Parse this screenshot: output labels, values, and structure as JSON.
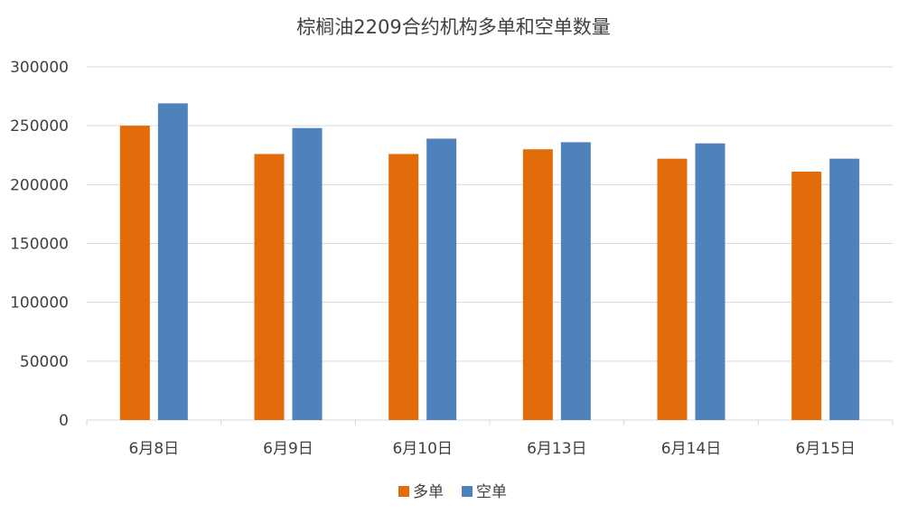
{
  "chart_data": {
    "type": "bar",
    "title": "棕榈油2209合约机构多单和空单数量",
    "xlabel": "",
    "ylabel": "",
    "categories": [
      "6月8日",
      "6月9日",
      "6月10日",
      "6月13日",
      "6月14日",
      "6月15日"
    ],
    "series": [
      {
        "name": "多单",
        "color": "#E36C0A",
        "values": [
          250000,
          226000,
          226000,
          230000,
          222000,
          211000
        ]
      },
      {
        "name": "空单",
        "color": "#4F81BD",
        "values": [
          269000,
          248000,
          239000,
          236000,
          235000,
          222000
        ]
      }
    ],
    "ylim": [
      0,
      300000
    ],
    "yticks": [
      "0",
      "50000",
      "100000",
      "150000",
      "200000",
      "250000",
      "300000"
    ],
    "grid": true,
    "legend_position": "bottom"
  }
}
